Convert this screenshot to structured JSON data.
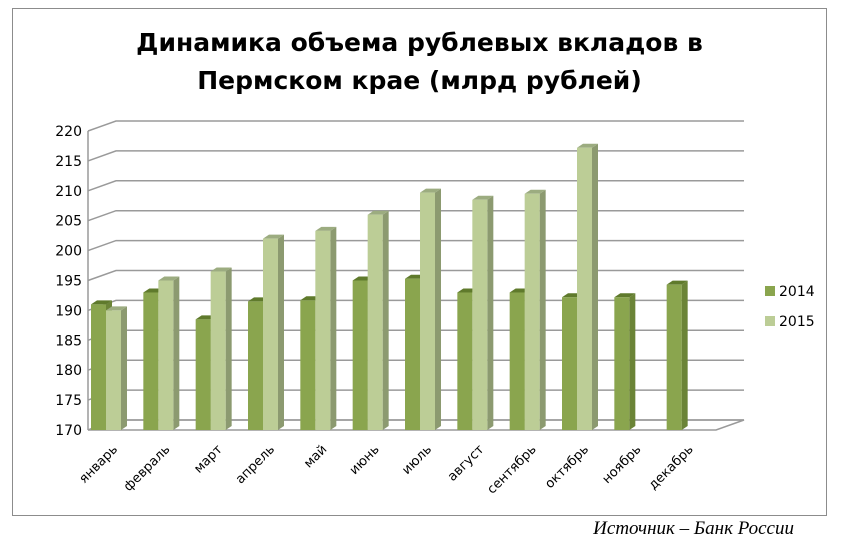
{
  "chart_data": {
    "type": "bar",
    "title": "Динамика объема рублевых вкладов в Пермском крае (млрд рублей)",
    "title_lines": [
      "Динамика объема рублевых вкладов в",
      "Пермском крае (млрд рублей)"
    ],
    "categories": [
      "январь",
      "февраль",
      "март",
      "апрель",
      "май",
      "июнь",
      "июль",
      "август",
      "сентябрь",
      "октябрь",
      "ноябрь",
      "декабрь"
    ],
    "series": [
      {
        "name": "2014",
        "color": "#8aa54e",
        "values": [
          191,
          193,
          188.5,
          191.5,
          191.7,
          195,
          195.3,
          193,
          193,
          192.2,
          192.2,
          194.3
        ]
      },
      {
        "name": "2015",
        "color": "#bccd96",
        "values": [
          190,
          195,
          196.5,
          202,
          203.3,
          206,
          209.7,
          208.5,
          209.5,
          217.2,
          null,
          null
        ]
      }
    ],
    "ylim": [
      170,
      220
    ],
    "yticks": [
      "170",
      "175",
      "180",
      "185",
      "190",
      "195",
      "200",
      "205",
      "210",
      "215",
      "220"
    ],
    "grid": true,
    "legend_position": "right",
    "three_d": true
  },
  "source": "Источник – Банк России"
}
